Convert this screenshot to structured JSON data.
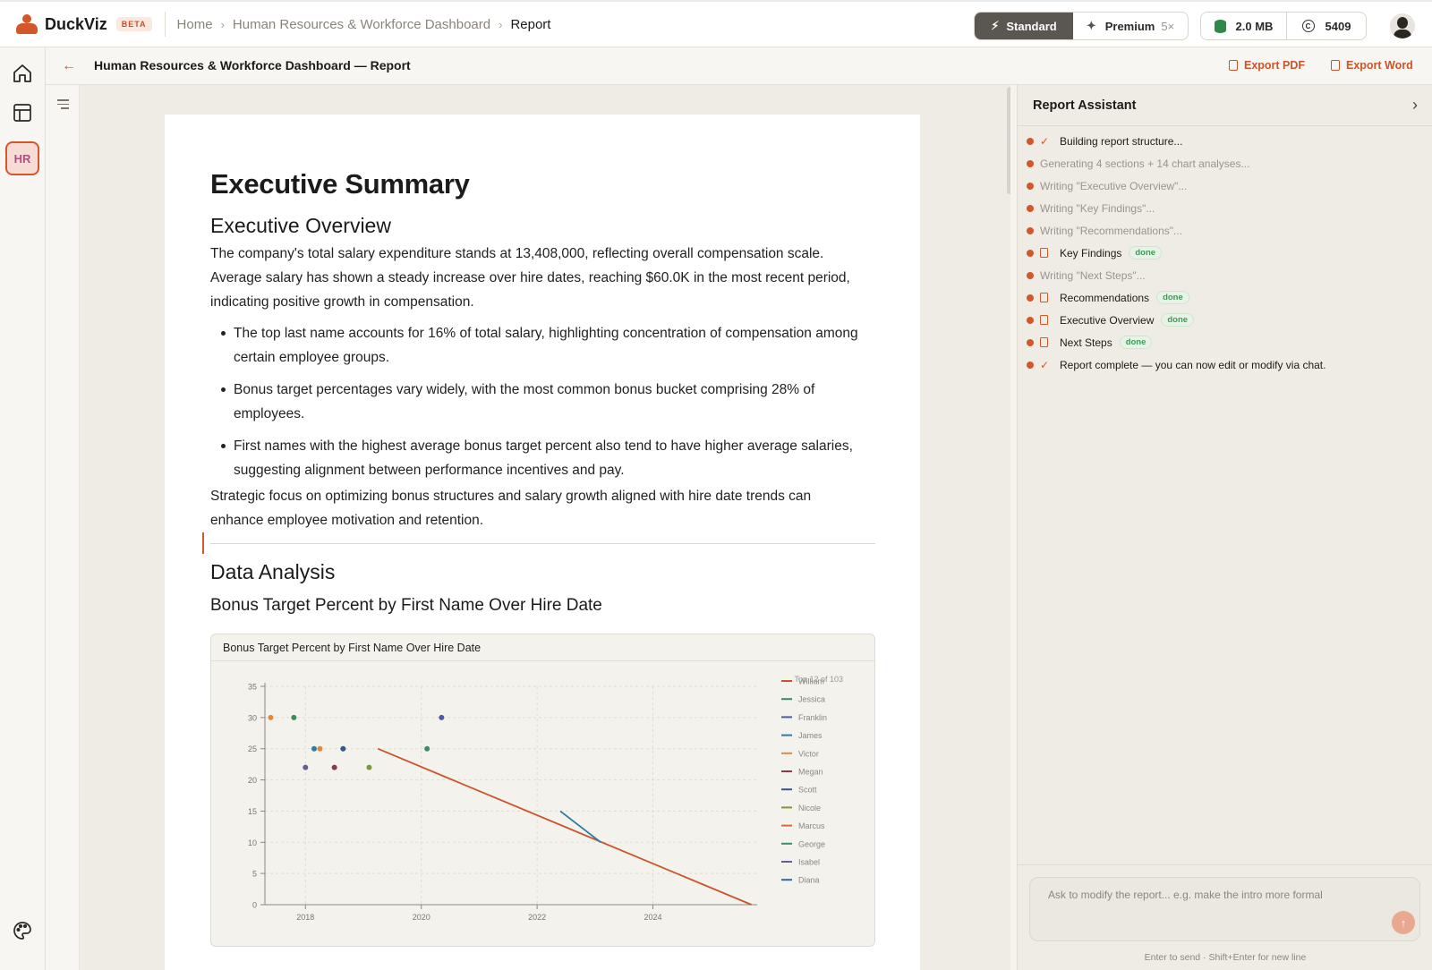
{
  "app": {
    "name": "DuckViz",
    "badge": "BETA"
  },
  "breadcrumb": {
    "items": [
      "Home",
      "Human Resources & Workforce Dashboard"
    ],
    "current": "Report"
  },
  "modes": {
    "standard": "Standard",
    "premium": "Premium",
    "premium_multiplier": "5×"
  },
  "stats": {
    "storage": "2.0 MB",
    "credits": "5409"
  },
  "rail": {
    "hr_label": "HR"
  },
  "subheader": {
    "title": "Human Resources & Workforce Dashboard — Report",
    "export_pdf": "Export PDF",
    "export_word": "Export Word"
  },
  "doc": {
    "title": "Executive Summary",
    "overview_heading": "Executive Overview",
    "overview_para": "The company's total salary expenditure stands at 13,408,000, reflecting overall compensation scale. Average salary has shown a steady increase over hire dates, reaching $60.0K in the most recent period, indicating positive growth in compensation.",
    "bullets": [
      "The top last name accounts for 16% of total salary, highlighting concentration of compensation among certain employee groups.",
      "Bonus target percentages vary widely, with the most common bonus bucket comprising 28% of employees.",
      "First names with the highest average bonus target percent also tend to have higher average salaries, suggesting alignment between performance incentives and pay."
    ],
    "closing_para": "Strategic focus on optimizing bonus structures and salary growth aligned with hire date trends can enhance employee motivation and retention.",
    "analysis_heading": "Data Analysis",
    "chart_heading": "Bonus Target Percent by First Name Over Hire Date",
    "chart_card_title": "Bonus Target Percent by First Name Over Hire Date"
  },
  "chart_data": {
    "type": "line",
    "title": "Bonus Target Percent by First Name Over Hire Date",
    "note": "Top 12 of 103",
    "xlabel": "",
    "ylabel": "",
    "xlim": [
      2017.3,
      2025.8
    ],
    "ylim": [
      0,
      35
    ],
    "x_ticks": [
      2018,
      2020,
      2022,
      2024
    ],
    "y_ticks": [
      0,
      5,
      10,
      15,
      20,
      25,
      30,
      35
    ],
    "grid": true,
    "legend_position": "right",
    "series": [
      {
        "name": "William",
        "color": "#c9552a",
        "points": [
          [
            2019.25,
            25
          ],
          [
            2025.7,
            0
          ]
        ]
      },
      {
        "name": "Jessica",
        "color": "#3d8a5a",
        "points": [
          [
            2017.8,
            30
          ]
        ]
      },
      {
        "name": "Franklin",
        "color": "#4e5aa8",
        "points": [
          [
            2020.35,
            30
          ]
        ]
      },
      {
        "name": "James",
        "color": "#2f7ba3",
        "points": [
          [
            2018.15,
            25
          ],
          [
            2022.4,
            15
          ],
          [
            2023.1,
            10
          ]
        ]
      },
      {
        "name": "Victor",
        "color": "#e08a3a",
        "points": [
          [
            2018.25,
            25
          ],
          [
            2017.4,
            30
          ]
        ]
      },
      {
        "name": "Megan",
        "color": "#8a3a4f",
        "points": [
          [
            2018.5,
            22
          ]
        ]
      },
      {
        "name": "Scott",
        "color": "#2d5a8a",
        "points": [
          [
            2018.65,
            25
          ]
        ]
      },
      {
        "name": "Nicole",
        "color": "#7a9a3a",
        "points": [
          [
            2019.1,
            22
          ]
        ]
      },
      {
        "name": "Marcus",
        "color": "#d46a3a",
        "points": []
      },
      {
        "name": "George",
        "color": "#3f8a6a",
        "points": [
          [
            2020.1,
            25
          ]
        ]
      },
      {
        "name": "Isabel",
        "color": "#6a5a9a",
        "points": [
          [
            2018.0,
            22
          ]
        ]
      },
      {
        "name": "Diana",
        "color": "#2f6aa3",
        "points": []
      }
    ]
  },
  "assistant": {
    "title": "Report Assistant",
    "steps": [
      {
        "text": "Building report structure...",
        "icon": "check",
        "style": "dark",
        "badge": ""
      },
      {
        "text": "Generating 4 sections + 14 chart analyses...",
        "icon": "",
        "style": "muted",
        "badge": ""
      },
      {
        "text": "Writing \"Executive Overview\"...",
        "icon": "",
        "style": "muted",
        "badge": ""
      },
      {
        "text": "Writing \"Key Findings\"...",
        "icon": "",
        "style": "muted",
        "badge": ""
      },
      {
        "text": "Writing \"Recommendations\"...",
        "icon": "",
        "style": "muted",
        "badge": ""
      },
      {
        "text": "Key Findings",
        "icon": "doc",
        "style": "dark",
        "badge": "done"
      },
      {
        "text": "Writing \"Next Steps\"...",
        "icon": "",
        "style": "muted",
        "badge": ""
      },
      {
        "text": "Recommendations",
        "icon": "doc",
        "style": "dark",
        "badge": "done"
      },
      {
        "text": "Executive Overview",
        "icon": "doc",
        "style": "dark",
        "badge": "done"
      },
      {
        "text": "Next Steps",
        "icon": "doc",
        "style": "dark",
        "badge": "done"
      },
      {
        "text": "Report complete — you can now edit or modify via chat.",
        "icon": "check",
        "style": "dark",
        "badge": ""
      }
    ],
    "input_placeholder": "Ask to modify the report... e.g. make the intro more formal",
    "hint": "Enter to send · Shift+Enter for new line"
  },
  "colors": {
    "accent": "#d4572a",
    "done_green": "#3f9a57"
  }
}
